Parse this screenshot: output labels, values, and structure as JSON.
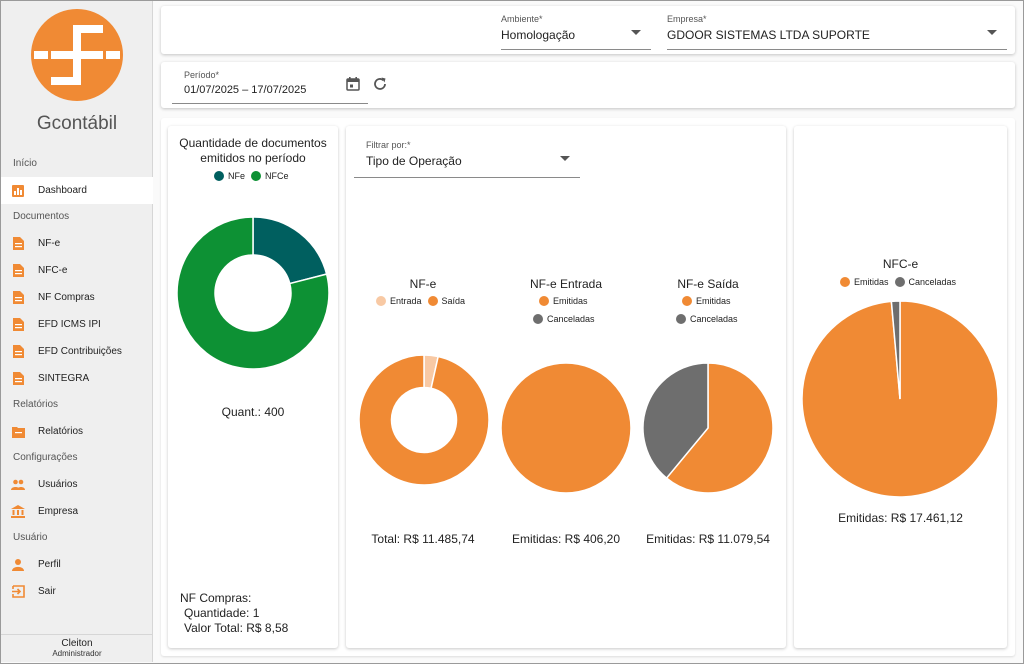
{
  "app": {
    "brand": "Gcontábil"
  },
  "colors": {
    "orange": "#f08a34",
    "teal": "#005f5f",
    "green": "#0d9134",
    "peach": "#f8c9a4",
    "gray": "#6e6e6e"
  },
  "sidebar": {
    "sections": [
      {
        "label": "Início",
        "items": [
          {
            "label": "Dashboard",
            "icon": "dashboard-icon",
            "active": true
          }
        ]
      },
      {
        "label": "Documentos",
        "items": [
          {
            "label": "NF-e",
            "icon": "document-icon"
          },
          {
            "label": "NFC-e",
            "icon": "document-icon"
          },
          {
            "label": "NF Compras",
            "icon": "document-icon"
          },
          {
            "label": "EFD ICMS IPI",
            "icon": "document-icon"
          },
          {
            "label": "EFD Contribuições",
            "icon": "document-icon"
          },
          {
            "label": "SINTEGRA",
            "icon": "document-icon"
          }
        ]
      },
      {
        "label": "Relatórios",
        "items": [
          {
            "label": "Relatórios",
            "icon": "report-icon"
          }
        ]
      },
      {
        "label": "Configurações",
        "items": [
          {
            "label": "Usuários",
            "icon": "users-icon"
          },
          {
            "label": "Empresa",
            "icon": "bank-icon"
          }
        ]
      },
      {
        "label": "Usuário",
        "items": [
          {
            "label": "Perfil",
            "icon": "person-icon"
          },
          {
            "label": "Sair",
            "icon": "logout-icon"
          }
        ]
      }
    ],
    "user": {
      "name": "Cleiton",
      "role": "Administrador"
    }
  },
  "filters": {
    "ambiente": {
      "label": "Ambiente*",
      "value": "Homologação"
    },
    "empresa": {
      "label": "Empresa*",
      "value": "GDOOR SISTEMAS LTDA SUPORTE"
    },
    "periodo": {
      "label": "Período*",
      "value": "01/07/2025 – 17/07/2025"
    },
    "filtrar": {
      "label": "Filtrar por:*",
      "value": "Tipo de Operação"
    }
  },
  "panel_left": {
    "title_line1": "Quantidade de documentos",
    "title_line2": "emitidos no período",
    "quant": "Quant.: 400",
    "compras_title": "NF Compras:",
    "compras_qtd": "Quantidade: 1",
    "compras_valor": "Valor Total: R$ 8,58"
  },
  "totals": {
    "nfe": "Total: R$ 11.485,74",
    "entrada": "Emitidas: R$ 406,20",
    "saida": "Emitidas: R$ 11.079,54",
    "nfce": "Emitidas: R$ 17.461,12"
  },
  "chart_data": [
    {
      "type": "pie",
      "title": "",
      "donut": true,
      "series": [
        {
          "name": "NFe",
          "value": 21
        },
        {
          "name": "NFCe",
          "value": 79
        }
      ]
    },
    {
      "type": "pie",
      "title": "NF-e",
      "donut": true,
      "series": [
        {
          "name": "Entrada",
          "value": 3.5
        },
        {
          "name": "Saída",
          "value": 96.5
        }
      ]
    },
    {
      "type": "pie",
      "title": "NF-e Entrada",
      "series": [
        {
          "name": "Emitidas",
          "value": 100
        },
        {
          "name": "Canceladas",
          "value": 0
        }
      ]
    },
    {
      "type": "pie",
      "title": "NF-e Saída",
      "series": [
        {
          "name": "Emitidas",
          "value": 61
        },
        {
          "name": "Canceladas",
          "value": 39
        }
      ]
    },
    {
      "type": "pie",
      "title": "NFC-e",
      "series": [
        {
          "name": "Emitidas",
          "value": 98.6
        },
        {
          "name": "Canceladas",
          "value": 1.4
        }
      ]
    }
  ]
}
